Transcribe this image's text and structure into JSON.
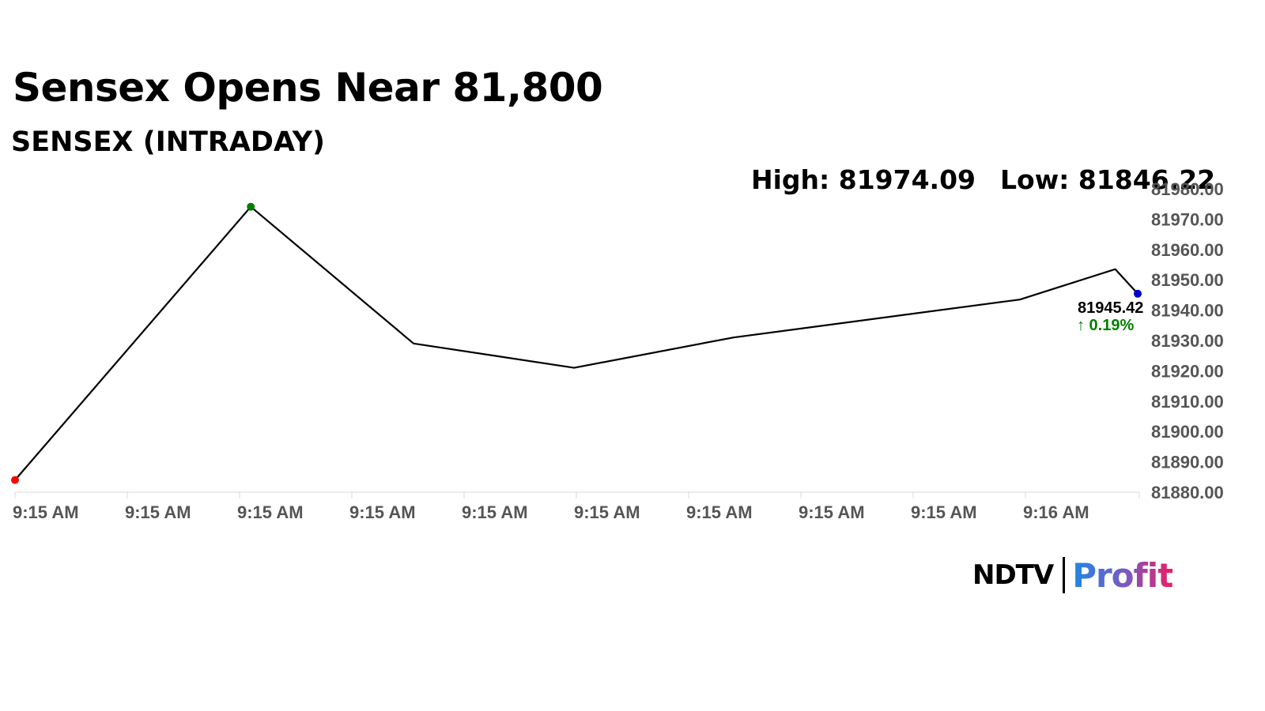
{
  "header": {
    "title": "Sensex Opens Near 81,800",
    "subtitle": "SENSEX (INTRADAY)",
    "high_text": "High: 81974.09",
    "low_text": "Low: 81846.22"
  },
  "chart_data": {
    "type": "line",
    "x_labels": [
      "9:15 AM",
      "9:15 AM",
      "9:15 AM",
      "9:15 AM",
      "9:15 AM",
      "9:15 AM",
      "9:15 AM",
      "9:15 AM",
      "9:15 AM",
      "9:16 AM"
    ],
    "y_ticks": [
      "81880.00",
      "81890.00",
      "81900.00",
      "81910.00",
      "81920.00",
      "81930.00",
      "81940.00",
      "81950.00",
      "81960.00",
      "81970.00",
      "81980.00"
    ],
    "ylim": [
      81880,
      81980
    ],
    "series": [
      {
        "values": [
          81884,
          81974.09,
          81929,
          81921,
          81931,
          81943.5,
          81953.5,
          81945.42
        ],
        "x_index": [
          0,
          2.1,
          3.55,
          4.98,
          6.4,
          8.95,
          9.8,
          10.0
        ],
        "color": "#000000"
      }
    ],
    "markers": [
      {
        "point": 0,
        "color": "#ff0000"
      },
      {
        "point": 1,
        "color": "#008000"
      },
      {
        "point": 7,
        "color": "#0000cc"
      }
    ],
    "last_value_label": "81945.42",
    "change_label": "↑ 0.19%",
    "change_color": "#008000",
    "grid": false,
    "legend": "none"
  },
  "branding": {
    "logo_ndtv": "NDTV",
    "logo_profit": "Profit"
  }
}
